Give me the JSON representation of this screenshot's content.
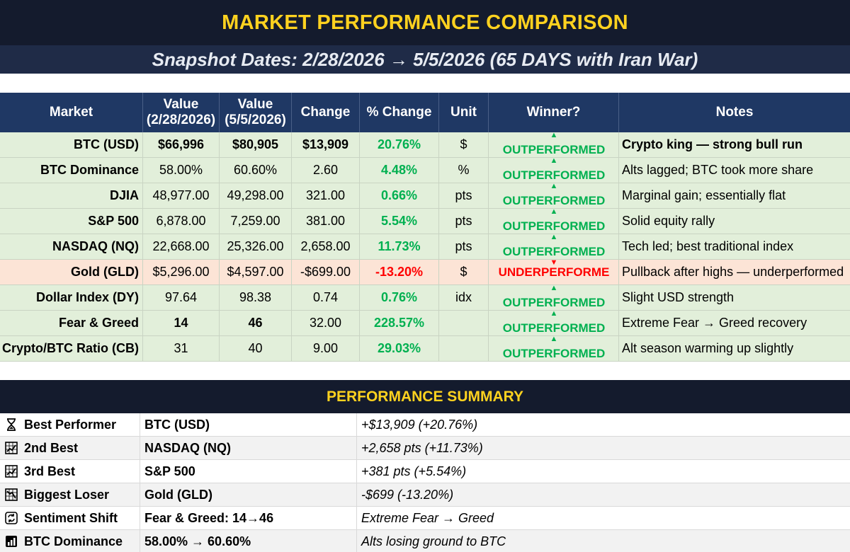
{
  "title": "MARKET PERFORMANCE COMPARISON",
  "snapshot": "Snapshot Dates:  2/28/2026  →  5/5/2026  (65 DAYS with Iran War)",
  "headers": {
    "market": "Market",
    "value1_line1": "Value",
    "value1_line2": "(2/28/2026)",
    "value2_line1": "Value",
    "value2_line2": "(5/5/2026)",
    "change": "Change",
    "pct_change": "% Change",
    "unit": "Unit",
    "winner": "Winner?",
    "notes": "Notes"
  },
  "rows": [
    {
      "market": "BTC (USD)",
      "v1": "$66,996",
      "v2": "$80,905",
      "change": "$13,909",
      "pct": "20.76%",
      "unit": "$",
      "winner": "OUTPERFORMED",
      "arrow": "▲",
      "notes": "Crypto king — strong bull run"
    },
    {
      "market": "BTC Dominance",
      "v1": "58.00%",
      "v2": "60.60%",
      "change": "2.60",
      "pct": "4.48%",
      "unit": "%",
      "winner": "OUTPERFORMED",
      "arrow": "▲",
      "notes": "Alts lagged; BTC took more share"
    },
    {
      "market": "DJIA",
      "v1": "48,977.00",
      "v2": "49,298.00",
      "change": "321.00",
      "pct": "0.66%",
      "unit": "pts",
      "winner": "OUTPERFORMED",
      "arrow": "▲",
      "notes": "Marginal gain; essentially flat"
    },
    {
      "market": "S&P 500",
      "v1": "6,878.00",
      "v2": "7,259.00",
      "change": "381.00",
      "pct": "5.54%",
      "unit": "pts",
      "winner": "OUTPERFORMED",
      "arrow": "▲",
      "notes": "Solid equity rally"
    },
    {
      "market": "NASDAQ (NQ)",
      "v1": "22,668.00",
      "v2": "25,326.00",
      "change": "2,658.00",
      "pct": "11.73%",
      "unit": "pts",
      "winner": "OUTPERFORMED",
      "arrow": "▲",
      "notes": "Tech led; best traditional index"
    },
    {
      "market": "Gold (GLD)",
      "v1": "$5,296.00",
      "v2": "$4,597.00",
      "change": "-$699.00",
      "pct": "-13.20%",
      "unit": "$",
      "winner": "UNDERPERFORME",
      "arrow": "▼",
      "notes": "Pullback after highs — underperformed"
    },
    {
      "market": "Dollar Index (DY)",
      "v1": "97.64",
      "v2": "98.38",
      "change": "0.74",
      "pct": "0.76%",
      "unit": "idx",
      "winner": "OUTPERFORMED",
      "arrow": "▲",
      "notes": "Slight USD strength"
    },
    {
      "market": "Fear & Greed",
      "v1": "14",
      "v2": "46",
      "change": "32.00",
      "pct": "228.57%",
      "unit": "",
      "winner": "OUTPERFORMED",
      "arrow": "▲",
      "notes": "Extreme Fear → Greed recovery"
    },
    {
      "market": "Crypto/BTC Ratio (CB)",
      "v1": "31",
      "v2": "40",
      "change": "9.00",
      "pct": "29.03%",
      "unit": "",
      "winner": "OUTPERFORMED",
      "arrow": "▲",
      "notes": "Alt season warming up slightly"
    }
  ],
  "summary_title": "PERFORMANCE SUMMARY",
  "summary": [
    {
      "icon": "hourglass-icon",
      "label": "Best Performer",
      "asset": "BTC (USD)",
      "detail": "+$13,909  (+20.76%)"
    },
    {
      "icon": "chart-icon",
      "label": "2nd Best",
      "asset": "NASDAQ (NQ)",
      "detail": "+2,658 pts (+11.73%)"
    },
    {
      "icon": "chart-icon",
      "label": "3rd Best",
      "asset": "S&P 500",
      "detail": "+381 pts (+5.54%)"
    },
    {
      "icon": "chart-down-icon",
      "label": "Biggest Loser",
      "asset": "Gold (GLD)",
      "detail": "-$699  (-13.20%)"
    },
    {
      "icon": "cycle-icon",
      "label": "Sentiment Shift",
      "asset": "Fear & Greed: 14→46",
      "detail": "Extreme Fear → Greed"
    },
    {
      "icon": "bar-chart-icon",
      "label": "BTC Dominance",
      "asset": "58.00% → 60.60%",
      "detail": "Alts losing ground to BTC"
    }
  ],
  "colors": {
    "gain": "#00b050",
    "loss": "#ff0000",
    "title_text": "#ffd21f",
    "header_bg": "#1f3864"
  }
}
